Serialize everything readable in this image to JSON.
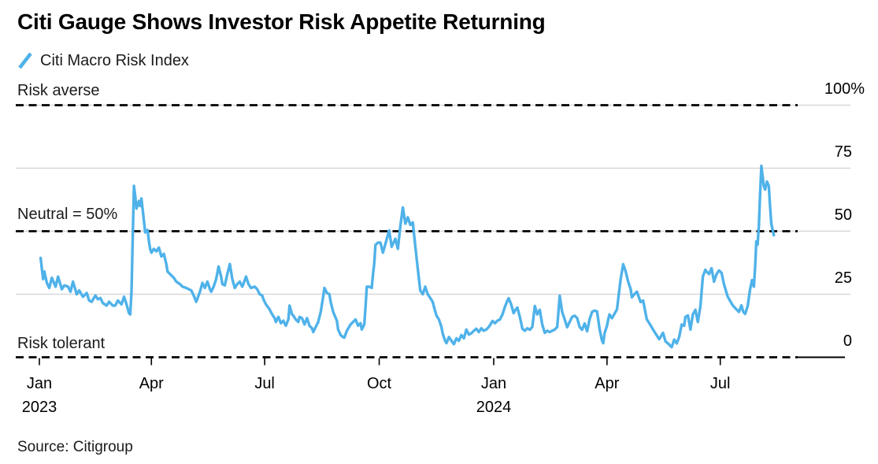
{
  "title": "Citi Gauge Shows Investor Risk Appetite Returning",
  "legend": {
    "label": "Citi Macro Risk Index",
    "marker": "slash-icon"
  },
  "source": "Source: Citigroup",
  "colors": {
    "line": "#4fb2e9",
    "grid": "#d8d8d8",
    "dash": "#000000",
    "text": "#1b1b1b"
  },
  "chart_data": {
    "type": "line",
    "series_name": "Citi Macro Risk Index",
    "x_unit": "days since 2023-01-01",
    "ylim": [
      0,
      100
    ],
    "grid": "horizontal",
    "legend_position": "top-left",
    "y_ticks": [
      {
        "value": 100,
        "label": "100%"
      },
      {
        "value": 75,
        "label": "75"
      },
      {
        "value": 50,
        "label": "50"
      },
      {
        "value": 25,
        "label": "25"
      },
      {
        "value": 0,
        "label": "0"
      }
    ],
    "x_ticks": [
      {
        "t": 0,
        "label": "Jan",
        "sub": "2023"
      },
      {
        "t": 90,
        "label": "Apr"
      },
      {
        "t": 181,
        "label": "Jul"
      },
      {
        "t": 273,
        "label": "Oct"
      },
      {
        "t": 365,
        "label": "Jan",
        "sub": "2024"
      },
      {
        "t": 456,
        "label": "Apr"
      },
      {
        "t": 547,
        "label": "Jul"
      }
    ],
    "reference_lines": [
      {
        "value": 100,
        "label": "Risk averse",
        "style": "dashed"
      },
      {
        "value": 50,
        "label": "Neutral = 50%",
        "style": "dashed"
      },
      {
        "value": 0,
        "label": "Risk tolerant",
        "style": "dashed"
      }
    ],
    "points": [
      [
        1,
        39.4
      ],
      [
        3,
        31
      ],
      [
        4,
        34
      ],
      [
        6,
        29.5
      ],
      [
        8,
        27.5
      ],
      [
        10,
        31.5
      ],
      [
        13,
        28
      ],
      [
        15,
        32
      ],
      [
        18,
        27
      ],
      [
        20,
        28.5
      ],
      [
        23,
        28
      ],
      [
        25,
        26
      ],
      [
        27,
        30
      ],
      [
        30,
        25
      ],
      [
        32,
        26.5
      ],
      [
        35,
        24
      ],
      [
        38,
        25.5
      ],
      [
        40,
        22.5
      ],
      [
        42,
        22
      ],
      [
        45,
        24.5
      ],
      [
        47,
        23
      ],
      [
        49,
        23.5
      ],
      [
        51,
        21.5
      ],
      [
        54,
        20.5
      ],
      [
        56,
        22
      ],
      [
        59,
        20.5
      ],
      [
        61,
        20.5
      ],
      [
        63,
        22.5
      ],
      [
        66,
        21
      ],
      [
        68,
        24
      ],
      [
        70,
        21
      ],
      [
        72,
        17.5
      ],
      [
        73,
        17
      ],
      [
        74,
        26
      ],
      [
        75,
        48
      ],
      [
        76,
        68
      ],
      [
        77,
        64
      ],
      [
        78,
        59
      ],
      [
        80,
        62
      ],
      [
        81,
        60
      ],
      [
        82,
        63
      ],
      [
        84,
        54
      ],
      [
        85,
        49.5
      ],
      [
        87,
        50.5
      ],
      [
        88,
        46
      ],
      [
        89,
        43
      ],
      [
        90,
        41.5
      ],
      [
        92,
        43
      ],
      [
        94,
        42
      ],
      [
        96,
        43.5
      ],
      [
        98,
        40
      ],
      [
        100,
        41
      ],
      [
        102,
        37
      ],
      [
        103,
        34
      ],
      [
        105,
        33
      ],
      [
        108,
        31.5
      ],
      [
        110,
        30
      ],
      [
        113,
        29
      ],
      [
        115,
        28
      ],
      [
        118,
        27.5
      ],
      [
        120,
        27
      ],
      [
        122,
        26.5
      ],
      [
        124,
        24.5
      ],
      [
        126,
        22
      ],
      [
        129,
        26
      ],
      [
        131,
        29.5
      ],
      [
        133,
        27.5
      ],
      [
        135,
        30
      ],
      [
        137,
        27
      ],
      [
        138,
        26
      ],
      [
        140,
        28
      ],
      [
        142,
        31
      ],
      [
        144,
        36
      ],
      [
        146,
        32
      ],
      [
        147,
        29
      ],
      [
        149,
        28.5
      ],
      [
        151,
        33
      ],
      [
        153,
        37
      ],
      [
        155,
        31
      ],
      [
        157,
        27.5
      ],
      [
        159,
        29
      ],
      [
        161,
        30
      ],
      [
        163,
        28
      ],
      [
        165,
        30.5
      ],
      [
        166,
        32
      ],
      [
        168,
        29
      ],
      [
        170,
        27.5
      ],
      [
        173,
        28
      ],
      [
        175,
        27
      ],
      [
        177,
        25
      ],
      [
        179,
        24.5
      ],
      [
        180,
        23
      ],
      [
        182,
        21
      ],
      [
        185,
        19
      ],
      [
        187,
        17
      ],
      [
        189,
        15.5
      ],
      [
        190,
        14
      ],
      [
        192,
        16
      ],
      [
        194,
        13.5
      ],
      [
        196,
        14.5
      ],
      [
        198,
        12.5
      ],
      [
        200,
        15
      ],
      [
        201,
        20.5
      ],
      [
        203,
        17
      ],
      [
        204,
        16.5
      ],
      [
        206,
        15
      ],
      [
        208,
        14
      ],
      [
        209,
        16
      ],
      [
        211,
        15.5
      ],
      [
        213,
        13
      ],
      [
        215,
        15.5
      ],
      [
        217,
        12.5
      ],
      [
        219,
        11.5
      ],
      [
        220,
        10
      ],
      [
        222,
        12
      ],
      [
        224,
        14
      ],
      [
        226,
        18
      ],
      [
        228,
        24
      ],
      [
        229,
        27.5
      ],
      [
        231,
        25.5
      ],
      [
        233,
        25
      ],
      [
        234,
        22
      ],
      [
        236,
        18
      ],
      [
        239,
        14.5
      ],
      [
        240,
        11
      ],
      [
        242,
        8.8
      ],
      [
        244,
        8
      ],
      [
        245,
        7.8
      ],
      [
        247,
        10.5
      ],
      [
        250,
        13
      ],
      [
        252,
        14
      ],
      [
        254,
        15
      ],
      [
        256,
        12.5
      ],
      [
        258,
        13.5
      ],
      [
        259,
        11
      ],
      [
        261,
        13
      ],
      [
        262,
        20
      ],
      [
        263,
        28
      ],
      [
        265,
        28
      ],
      [
        267,
        27.5
      ],
      [
        268,
        33
      ],
      [
        269,
        37
      ],
      [
        270,
        44.5
      ],
      [
        272,
        45.5
      ],
      [
        274,
        45.5
      ],
      [
        276,
        41.5
      ],
      [
        278,
        45
      ],
      [
        281,
        50.3
      ],
      [
        283,
        43.8
      ],
      [
        286,
        47
      ],
      [
        288,
        43
      ],
      [
        290,
        52
      ],
      [
        292,
        59.4
      ],
      [
        294,
        53
      ],
      [
        296,
        55.5
      ],
      [
        298,
        52.5
      ],
      [
        300,
        53.5
      ],
      [
        302,
        44
      ],
      [
        304,
        35
      ],
      [
        306,
        26.5
      ],
      [
        308,
        25
      ],
      [
        310,
        28
      ],
      [
        312,
        25
      ],
      [
        314,
        23.5
      ],
      [
        316,
        22
      ],
      [
        317,
        20
      ],
      [
        319,
        16.5
      ],
      [
        321,
        15
      ],
      [
        323,
        12
      ],
      [
        324,
        9.4
      ],
      [
        326,
        6.5
      ],
      [
        327,
        5.6
      ],
      [
        329,
        8
      ],
      [
        331,
        6.6
      ],
      [
        333,
        5.2
      ],
      [
        335,
        7.5
      ],
      [
        337,
        6.5
      ],
      [
        339,
        8.8
      ],
      [
        341,
        7.5
      ],
      [
        343,
        11
      ],
      [
        345,
        9
      ],
      [
        347,
        9.5
      ],
      [
        349,
        10.5
      ],
      [
        351,
        11.3
      ],
      [
        353,
        10
      ],
      [
        355,
        11.5
      ],
      [
        357,
        10.5
      ],
      [
        359,
        11
      ],
      [
        361,
        12
      ],
      [
        363,
        13.5
      ],
      [
        364,
        14.4
      ],
      [
        366,
        13.5
      ],
      [
        368,
        14.5
      ],
      [
        370,
        15
      ],
      [
        372,
        17
      ],
      [
        374,
        20
      ],
      [
        376,
        22.5
      ],
      [
        377,
        23.4
      ],
      [
        379,
        21
      ],
      [
        381,
        17.5
      ],
      [
        382,
        18.5
      ],
      [
        384,
        19.7
      ],
      [
        386,
        16
      ],
      [
        388,
        11.3
      ],
      [
        390,
        10.5
      ],
      [
        392,
        11.5
      ],
      [
        394,
        10.9
      ],
      [
        396,
        12
      ],
      [
        398,
        20.3
      ],
      [
        400,
        17
      ],
      [
        401,
        18
      ],
      [
        402,
        18.8
      ],
      [
        404,
        13
      ],
      [
        406,
        9.7
      ],
      [
        408,
        10.5
      ],
      [
        410,
        10
      ],
      [
        412,
        10.5
      ],
      [
        414,
        11
      ],
      [
        416,
        12
      ],
      [
        417,
        18
      ],
      [
        418,
        24.4
      ],
      [
        420,
        18
      ],
      [
        422,
        15
      ],
      [
        424,
        11.9
      ],
      [
        426,
        14
      ],
      [
        428,
        16
      ],
      [
        430,
        16.5
      ],
      [
        432,
        15.6
      ],
      [
        434,
        12
      ],
      [
        436,
        10.9
      ],
      [
        438,
        13.4
      ],
      [
        440,
        10.3
      ],
      [
        442,
        15
      ],
      [
        444,
        18
      ],
      [
        446,
        18.5
      ],
      [
        448,
        18.2
      ],
      [
        450,
        11.3
      ],
      [
        451,
        9
      ],
      [
        452,
        6.6
      ],
      [
        453,
        5.6
      ],
      [
        454,
        9.4
      ],
      [
        456,
        12.5
      ],
      [
        457,
        15
      ],
      [
        458,
        17
      ],
      [
        460,
        15.5
      ],
      [
        464,
        19
      ],
      [
        467,
        31
      ],
      [
        469,
        36.9
      ],
      [
        471,
        34
      ],
      [
        473,
        30
      ],
      [
        475,
        27
      ],
      [
        476,
        23.8
      ],
      [
        478,
        25
      ],
      [
        480,
        26
      ],
      [
        483,
        21.9
      ],
      [
        485,
        22.5
      ],
      [
        488,
        15
      ],
      [
        490,
        13.5
      ],
      [
        493,
        11
      ],
      [
        495,
        9.4
      ],
      [
        498,
        7.2
      ],
      [
        501,
        9.7
      ],
      [
        503,
        6.3
      ],
      [
        505,
        5.5
      ],
      [
        508,
        4
      ],
      [
        510,
        7
      ],
      [
        512,
        5.5
      ],
      [
        514,
        8
      ],
      [
        516,
        13
      ],
      [
        518,
        12.5
      ],
      [
        519,
        16
      ],
      [
        521,
        16.6
      ],
      [
        523,
        11
      ],
      [
        525,
        17
      ],
      [
        527,
        18.8
      ],
      [
        529,
        14
      ],
      [
        531,
        20
      ],
      [
        533,
        32
      ],
      [
        535,
        34.7
      ],
      [
        536,
        34
      ],
      [
        538,
        33
      ],
      [
        540,
        35.3
      ],
      [
        542,
        30
      ],
      [
        544,
        33
      ],
      [
        546,
        34.4
      ],
      [
        548,
        33.5
      ],
      [
        550,
        29
      ],
      [
        553,
        24
      ],
      [
        557,
        20.6
      ],
      [
        560,
        19
      ],
      [
        562,
        18
      ],
      [
        564,
        20.6
      ],
      [
        565.5,
        18
      ],
      [
        567,
        17.2
      ],
      [
        569,
        20.3
      ],
      [
        571,
        27
      ],
      [
        572.5,
        30.6
      ],
      [
        574,
        28
      ],
      [
        575,
        36
      ],
      [
        576,
        46
      ],
      [
        577,
        44.7
      ],
      [
        578,
        52
      ],
      [
        579,
        65
      ],
      [
        580,
        75.9
      ],
      [
        581,
        72
      ],
      [
        582,
        67.8
      ],
      [
        583,
        66.5
      ],
      [
        584.5,
        69.7
      ],
      [
        586,
        68
      ],
      [
        587,
        60
      ],
      [
        588,
        53
      ],
      [
        590,
        48.4
      ]
    ]
  }
}
